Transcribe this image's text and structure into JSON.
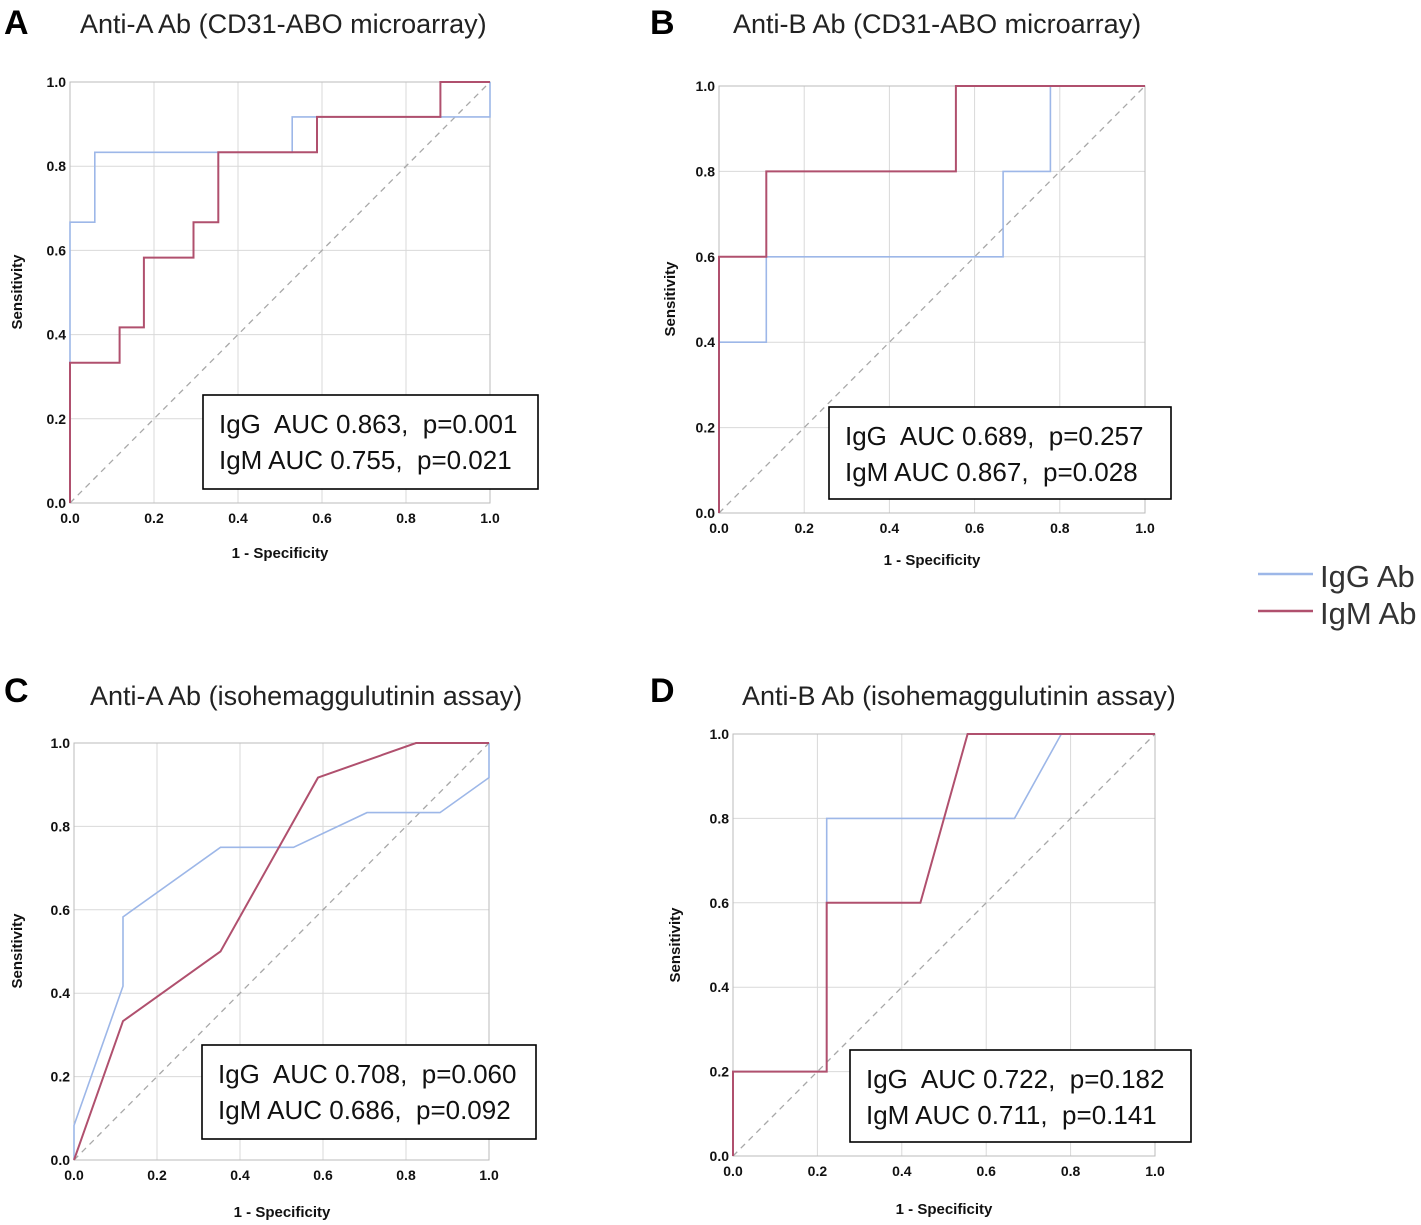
{
  "figure": {
    "legend": {
      "entries": [
        {
          "label": "IgG Ab",
          "color": "#9db7e8"
        },
        {
          "label": "IgM Ab",
          "color": "#b0506e"
        }
      ]
    }
  },
  "chart_data": [
    {
      "panel": "A",
      "type": "line",
      "title": "Anti-A Ab (CD31-ABO microarray)",
      "xlabel": "1 - Specificity",
      "ylabel": "Sensitivity",
      "xlim": [
        0,
        1
      ],
      "ylim": [
        0,
        1
      ],
      "xticks": [
        "0.0",
        "0.2",
        "0.4",
        "0.6",
        "0.8",
        "1.0"
      ],
      "yticks": [
        "0.0",
        "0.2",
        "0.4",
        "0.6",
        "0.8",
        "1.0"
      ],
      "grid": true,
      "series": [
        {
          "name": "IgG Ab",
          "points": [
            [
              0,
              0
            ],
            [
              0,
              0.667
            ],
            [
              0.059,
              0.667
            ],
            [
              0.059,
              0.833
            ],
            [
              0.529,
              0.833
            ],
            [
              0.529,
              0.917
            ],
            [
              1.0,
              0.917
            ],
            [
              1.0,
              1.0
            ]
          ]
        },
        {
          "name": "IgM Ab",
          "points": [
            [
              0,
              0
            ],
            [
              0,
              0.333
            ],
            [
              0.118,
              0.333
            ],
            [
              0.118,
              0.417
            ],
            [
              0.176,
              0.417
            ],
            [
              0.176,
              0.583
            ],
            [
              0.294,
              0.583
            ],
            [
              0.294,
              0.667
            ],
            [
              0.353,
              0.667
            ],
            [
              0.353,
              0.833
            ],
            [
              0.588,
              0.833
            ],
            [
              0.588,
              0.917
            ],
            [
              0.882,
              0.917
            ],
            [
              0.882,
              1.0
            ],
            [
              1.0,
              1.0
            ]
          ]
        }
      ],
      "auc_lines": [
        "IgG  AUC 0.863,  p=0.001",
        "IgM AUC 0.755,  p=0.021"
      ]
    },
    {
      "panel": "B",
      "type": "line",
      "title": "Anti-B Ab (CD31-ABO microarray)",
      "xlabel": "1 - Specificity",
      "ylabel": "Sensitivity",
      "xlim": [
        0,
        1
      ],
      "ylim": [
        0,
        1
      ],
      "xticks": [
        "0.0",
        "0.2",
        "0.4",
        "0.6",
        "0.8",
        "1.0"
      ],
      "yticks": [
        "0.0",
        "0.2",
        "0.4",
        "0.6",
        "0.8",
        "1.0"
      ],
      "grid": true,
      "series": [
        {
          "name": "IgG Ab",
          "points": [
            [
              0,
              0
            ],
            [
              0,
              0.4
            ],
            [
              0.111,
              0.4
            ],
            [
              0.111,
              0.6
            ],
            [
              0.667,
              0.6
            ],
            [
              0.667,
              0.8
            ],
            [
              0.778,
              0.8
            ],
            [
              0.778,
              1.0
            ],
            [
              1.0,
              1.0
            ]
          ]
        },
        {
          "name": "IgM Ab",
          "points": [
            [
              0,
              0
            ],
            [
              0,
              0.6
            ],
            [
              0.111,
              0.6
            ],
            [
              0.111,
              0.8
            ],
            [
              0.556,
              0.8
            ],
            [
              0.556,
              1.0
            ],
            [
              1.0,
              1.0
            ]
          ]
        }
      ],
      "auc_lines": [
        "IgG  AUC 0.689,  p=0.257",
        "IgM AUC 0.867,  p=0.028"
      ]
    },
    {
      "panel": "C",
      "type": "line",
      "title": "Anti-A Ab (isohemaggulutinin assay)",
      "xlabel": "1 - Specificity",
      "ylabel": "Sensitivity",
      "xlim": [
        0,
        1
      ],
      "ylim": [
        0,
        1
      ],
      "xticks": [
        "0.0",
        "0.2",
        "0.4",
        "0.6",
        "0.8",
        "1.0"
      ],
      "yticks": [
        "0.0",
        "0.2",
        "0.4",
        "0.6",
        "0.8",
        "1.0"
      ],
      "grid": true,
      "series": [
        {
          "name": "IgG Ab",
          "points": [
            [
              0,
              0
            ],
            [
              0,
              0.083
            ],
            [
              0.118,
              0.417
            ],
            [
              0.118,
              0.583
            ],
            [
              0.353,
              0.75
            ],
            [
              0.529,
              0.75
            ],
            [
              0.706,
              0.833
            ],
            [
              0.882,
              0.833
            ],
            [
              1.0,
              0.917
            ],
            [
              1.0,
              1.0
            ]
          ]
        },
        {
          "name": "IgM Ab",
          "points": [
            [
              0,
              0
            ],
            [
              0.118,
              0.333
            ],
            [
              0.353,
              0.5
            ],
            [
              0.588,
              0.917
            ],
            [
              0.824,
              1.0
            ],
            [
              1.0,
              1.0
            ]
          ]
        }
      ],
      "auc_lines": [
        "IgG  AUC 0.708,  p=0.060",
        "IgM AUC 0.686,  p=0.092"
      ]
    },
    {
      "panel": "D",
      "type": "line",
      "title": "Anti-B Ab (isohemaggulutinin assay)",
      "xlabel": "1 - Specificity",
      "ylabel": "Sensitivity",
      "xlim": [
        0,
        1
      ],
      "ylim": [
        0,
        1
      ],
      "xticks": [
        "0.0",
        "0.2",
        "0.4",
        "0.6",
        "0.8",
        "1.0"
      ],
      "yticks": [
        "0.0",
        "0.2",
        "0.4",
        "0.6",
        "0.8",
        "1.0"
      ],
      "grid": true,
      "series": [
        {
          "name": "IgG Ab",
          "points": [
            [
              0,
              0
            ],
            [
              0,
              0.2
            ],
            [
              0.222,
              0.2
            ],
            [
              0.222,
              0.8
            ],
            [
              0.667,
              0.8
            ],
            [
              0.778,
              1.0
            ],
            [
              1.0,
              1.0
            ]
          ]
        },
        {
          "name": "IgM Ab",
          "points": [
            [
              0,
              0
            ],
            [
              0,
              0.2
            ],
            [
              0.222,
              0.2
            ],
            [
              0.222,
              0.6
            ],
            [
              0.444,
              0.6
            ],
            [
              0.556,
              1.0
            ],
            [
              1.0,
              1.0
            ]
          ]
        }
      ],
      "auc_lines": [
        "IgG  AUC 0.722,  p=0.182",
        "IgM AUC 0.711,  p=0.141"
      ]
    }
  ]
}
